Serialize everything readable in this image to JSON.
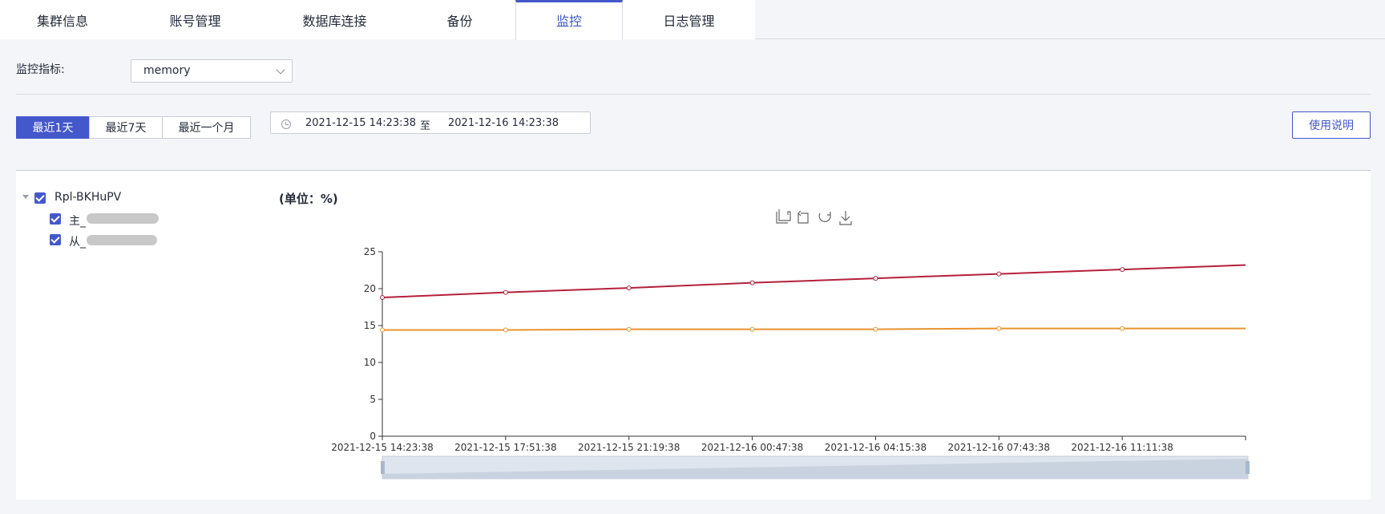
{
  "tabs": [
    {
      "label": "集群信息"
    },
    {
      "label": "账号管理"
    },
    {
      "label": "数据库连接"
    },
    {
      "label": "备份"
    },
    {
      "label": "监控"
    },
    {
      "label": "日志管理"
    }
  ],
  "metric": {
    "label": "监控指标:",
    "value": "memory"
  },
  "range_buttons": [
    {
      "label": "最近1天"
    },
    {
      "label": "最近7天"
    },
    {
      "label": "最近一个月"
    }
  ],
  "date_range": {
    "start": "2021-12-15 14:23:38",
    "separator": "至",
    "end": "2021-12-16 14:23:38"
  },
  "help_button": "使用说明",
  "tree": {
    "root": "Rpl-BKHuPV",
    "children": [
      {
        "label": "主_"
      },
      {
        "label": "从_"
      }
    ]
  },
  "unit_label": "(单位：%)",
  "colors": {
    "accent": "#4458cc",
    "series_primary": "#b5203b",
    "series_secondary": "#e8932d"
  },
  "chart_data": {
    "type": "line",
    "title": "(单位：%)",
    "x": [
      "2021-12-15 14:23:38",
      "2021-12-15 17:51:38",
      "2021-12-15 21:19:38",
      "2021-12-16 00:47:38",
      "2021-12-16 04:15:38",
      "2021-12-16 07:43:38",
      "2021-12-16 11:11:38",
      "2021-12-16 14:23:38"
    ],
    "xticks": [
      "2021-12-15 14:23:38",
      "2021-12-15 17:51:38",
      "2021-12-15 21:19:38",
      "2021-12-16 00:47:38",
      "2021-12-16 04:15:38",
      "2021-12-16 07:43:38",
      "2021-12-16 11:11:38"
    ],
    "series": [
      {
        "name": "主_",
        "color": "#b5203b",
        "values": [
          18.8,
          19.5,
          20.1,
          20.8,
          21.4,
          22.0,
          22.6,
          23.2
        ]
      },
      {
        "name": "从_",
        "color": "#e8932d",
        "values": [
          14.4,
          14.4,
          14.5,
          14.5,
          14.5,
          14.6,
          14.6,
          14.6
        ]
      }
    ],
    "ylim": [
      0,
      25
    ],
    "yticks": [
      0,
      5,
      10,
      15,
      20,
      25
    ],
    "xlabel": "",
    "ylabel": ""
  }
}
